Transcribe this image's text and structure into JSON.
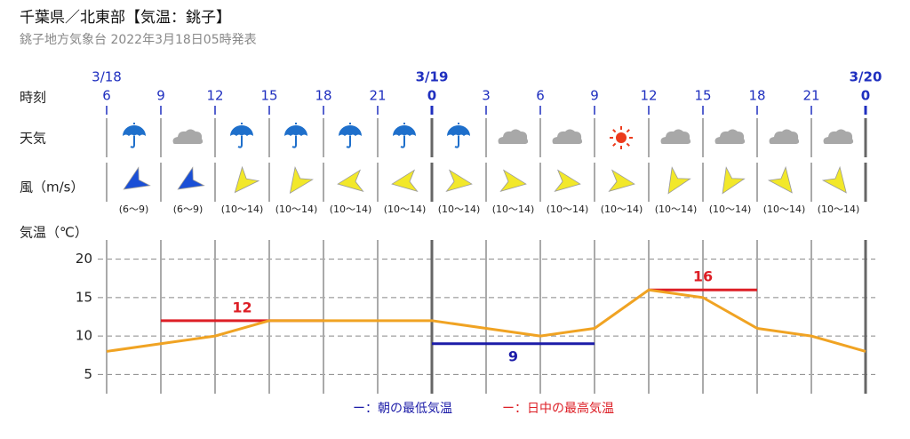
{
  "header": {
    "title": "千葉県／北東部【気温：銚子】",
    "subtitle": "銚子地方気象台 2022年3月18日05時発表"
  },
  "row_labels": {
    "time": "時刻",
    "weather": "天気",
    "wind": "風（m/s）",
    "temp": "気温（℃）"
  },
  "dates": [
    {
      "value": 6,
      "label": "3/18"
    },
    {
      "value": 24,
      "label": "3/19"
    },
    {
      "value": 48,
      "label": "3/20"
    }
  ],
  "wind_labels": [
    "(6～9)",
    "(6～9)",
    "(10～14)",
    "(10～14)",
    "(10～14)",
    "(10～14)",
    "(10～14)",
    "(10～14)",
    "(10～14)",
    "(10～14)",
    "(10～14)",
    "(10～14)",
    "(10～14)",
    "(10～14)"
  ],
  "chart_data": {
    "type": "line",
    "x": [
      6,
      9,
      12,
      15,
      18,
      21,
      24,
      27,
      30,
      33,
      36,
      39,
      42,
      45,
      48
    ],
    "xlim": [
      6,
      48
    ],
    "xticks": [
      6,
      9,
      12,
      15,
      18,
      21,
      {
        "value": 24,
        "label": "0"
      },
      {
        "value": 27,
        "label": "3"
      },
      {
        "value": 30,
        "label": "6"
      },
      {
        "value": 33,
        "label": "9"
      },
      {
        "value": 36,
        "label": "12"
      },
      {
        "value": 39,
        "label": "15"
      },
      {
        "value": 42,
        "label": "18"
      },
      {
        "value": 45,
        "label": "21"
      },
      {
        "value": 48,
        "label": "0"
      }
    ],
    "ylim": [
      2.5,
      22.5
    ],
    "yticks": [
      5,
      10,
      15,
      20
    ],
    "grid": true,
    "series": [
      {
        "color": "#f0a323",
        "values": [
          8,
          9,
          10,
          12,
          12,
          12,
          12,
          11,
          10,
          11,
          16,
          15,
          11,
          10,
          8
        ]
      }
    ],
    "min_temp": {
      "name": "ー：朝の最低気温",
      "color": "#1c1ca8",
      "segments": [
        {
          "x": [
            24,
            33
          ],
          "value": 9
        }
      ]
    },
    "max_temp": {
      "name": "ー：日中の最高気温",
      "color": "#dd1f26",
      "segments": [
        {
          "x": [
            9,
            18
          ],
          "value": 12
        },
        {
          "x": [
            36,
            42
          ],
          "value": 16
        }
      ]
    }
  }
}
